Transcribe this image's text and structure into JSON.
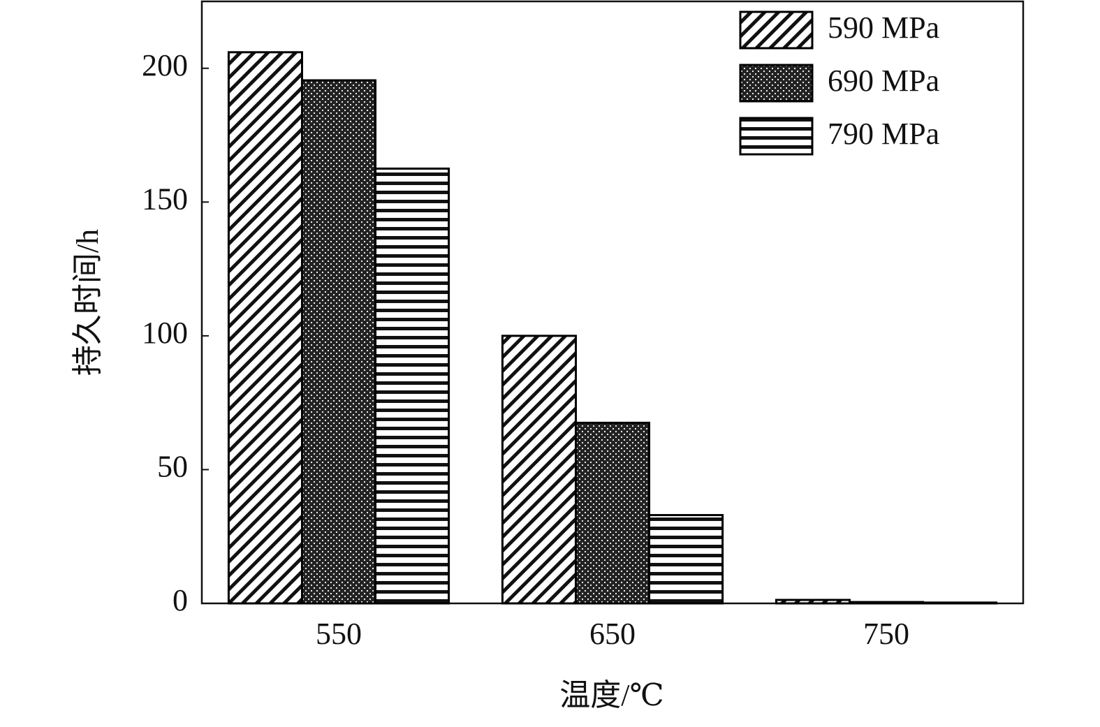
{
  "chart_data": {
    "type": "bar",
    "x_label": "温度/℃",
    "y_label": "持久时间/h",
    "categories": [
      "550",
      "650",
      "750"
    ],
    "series": [
      {
        "name": "590 MPa",
        "color": "#000000",
        "pattern": "diagonal",
        "values": [
          206,
          100,
          1.3
        ]
      },
      {
        "name": "690 MPa",
        "color": "#000000",
        "pattern": "dots",
        "values": [
          195.5,
          67.5,
          0.5
        ]
      },
      {
        "name": "790 MPa",
        "color": "#000000",
        "pattern": "horizontal",
        "values": [
          162.5,
          33,
          0.3
        ]
      }
    ],
    "ylim": [
      0,
      225
    ],
    "yticks": [
      0,
      50,
      100,
      150,
      200
    ],
    "grid": false,
    "legend": "top-right"
  }
}
